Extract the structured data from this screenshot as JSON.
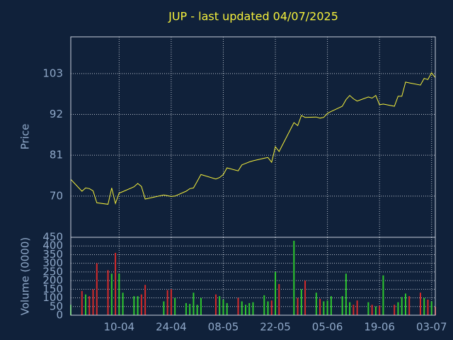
{
  "chart_data": [
    {
      "type": "line",
      "title": "JUP - last updated 04/07/2025",
      "ylabel": "Price",
      "x": [
        "28-03",
        "31-03",
        "01-04",
        "02-04",
        "03-04",
        "04-04",
        "07-04",
        "08-04",
        "09-04",
        "10-04",
        "11-04",
        "14-04",
        "15-04",
        "16-04",
        "17-04",
        "22-04",
        "23-04",
        "24-04",
        "25-04",
        "28-04",
        "29-04",
        "30-04",
        "01-05",
        "02-05",
        "06-05",
        "07-05",
        "08-05",
        "09-05",
        "12-05",
        "13-05",
        "14-05",
        "15-05",
        "16-05",
        "19-05",
        "20-05",
        "21-05",
        "22-05",
        "23-05",
        "27-05",
        "28-05",
        "29-05",
        "30-05",
        "02-06",
        "03-06",
        "04-06",
        "05-06",
        "06-06",
        "09-06",
        "10-06",
        "11-06",
        "12-06",
        "13-06",
        "16-06",
        "17-06",
        "18-06",
        "19-06",
        "20-06",
        "23-06",
        "24-06",
        "25-06",
        "26-06",
        "27-06",
        "30-06",
        "01-07",
        "02-07",
        "03-07",
        "04-07"
      ],
      "series": [
        {
          "color": "#f5f03c",
          "values": [
            74.5,
            71.3,
            72.2,
            72.0,
            71.4,
            68.2,
            67.8,
            72.2,
            68.0,
            70.8,
            71.2,
            72.5,
            73.4,
            72.6,
            69.2,
            70.3,
            70.1,
            69.9,
            70.0,
            71.3,
            72.0,
            72.2,
            74.0,
            75.8,
            74.6,
            75.0,
            75.8,
            77.6,
            76.8,
            78.4,
            78.8,
            79.2,
            79.5,
            80.2,
            80.4,
            79.1,
            83.3,
            82.0,
            89.8,
            89.0,
            91.7,
            91.2,
            91.3,
            91.0,
            91.2,
            92.3,
            92.8,
            94.2,
            96.0,
            97.1,
            96.2,
            95.6,
            96.7,
            96.4,
            97.1,
            94.6,
            94.8,
            94.2,
            96.9,
            96.9,
            100.7,
            100.5,
            99.9,
            101.7,
            101.4,
            103.2,
            101.9
          ]
        }
      ],
      "ylim": [
        58.9,
        112.9
      ],
      "yticks": [
        70,
        81,
        92,
        103
      ],
      "grid": true
    },
    {
      "type": "bar",
      "ylabel": "Volume (0000)",
      "up_color": "#2ec82e",
      "down_color": "#d42a2a",
      "x": [
        "28-03",
        "31-03",
        "01-04",
        "02-04",
        "03-04",
        "04-04",
        "07-04",
        "08-04",
        "09-04",
        "10-04",
        "11-04",
        "14-04",
        "15-04",
        "16-04",
        "17-04",
        "22-04",
        "23-04",
        "24-04",
        "25-04",
        "28-04",
        "29-04",
        "30-04",
        "01-05",
        "02-05",
        "06-05",
        "07-05",
        "08-05",
        "09-05",
        "12-05",
        "13-05",
        "14-05",
        "15-05",
        "16-05",
        "19-05",
        "20-05",
        "21-05",
        "22-05",
        "23-05",
        "27-05",
        "28-05",
        "29-05",
        "30-05",
        "02-06",
        "03-06",
        "04-06",
        "05-06",
        "06-06",
        "09-06",
        "10-06",
        "11-06",
        "12-06",
        "13-06",
        "16-06",
        "17-06",
        "18-06",
        "19-06",
        "20-06",
        "23-06",
        "24-06",
        "25-06",
        "26-06",
        "27-06",
        "30-06",
        "01-07",
        "02-07",
        "03-07",
        "04-07"
      ],
      "values": [
        60,
        140,
        120,
        110,
        150,
        300,
        260,
        240,
        360,
        240,
        130,
        110,
        110,
        120,
        175,
        80,
        145,
        150,
        100,
        70,
        65,
        130,
        60,
        100,
        120,
        110,
        90,
        70,
        100,
        80,
        60,
        70,
        75,
        115,
        80,
        85,
        250,
        180,
        430,
        100,
        150,
        200,
        130,
        95,
        80,
        85,
        110,
        110,
        240,
        75,
        60,
        85,
        75,
        60,
        50,
        55,
        230,
        60,
        75,
        105,
        125,
        110,
        130,
        100,
        90,
        80,
        50
      ],
      "ylim": [
        0,
        450
      ],
      "yticks": [
        0,
        50,
        100,
        150,
        200,
        250,
        300,
        350,
        400,
        450
      ],
      "xlim": [
        "28-03",
        "04-07"
      ],
      "xticks": [
        "10-04",
        "24-04",
        "08-05",
        "22-05",
        "05-06",
        "19-06",
        "03-07"
      ],
      "grid": true
    }
  ]
}
